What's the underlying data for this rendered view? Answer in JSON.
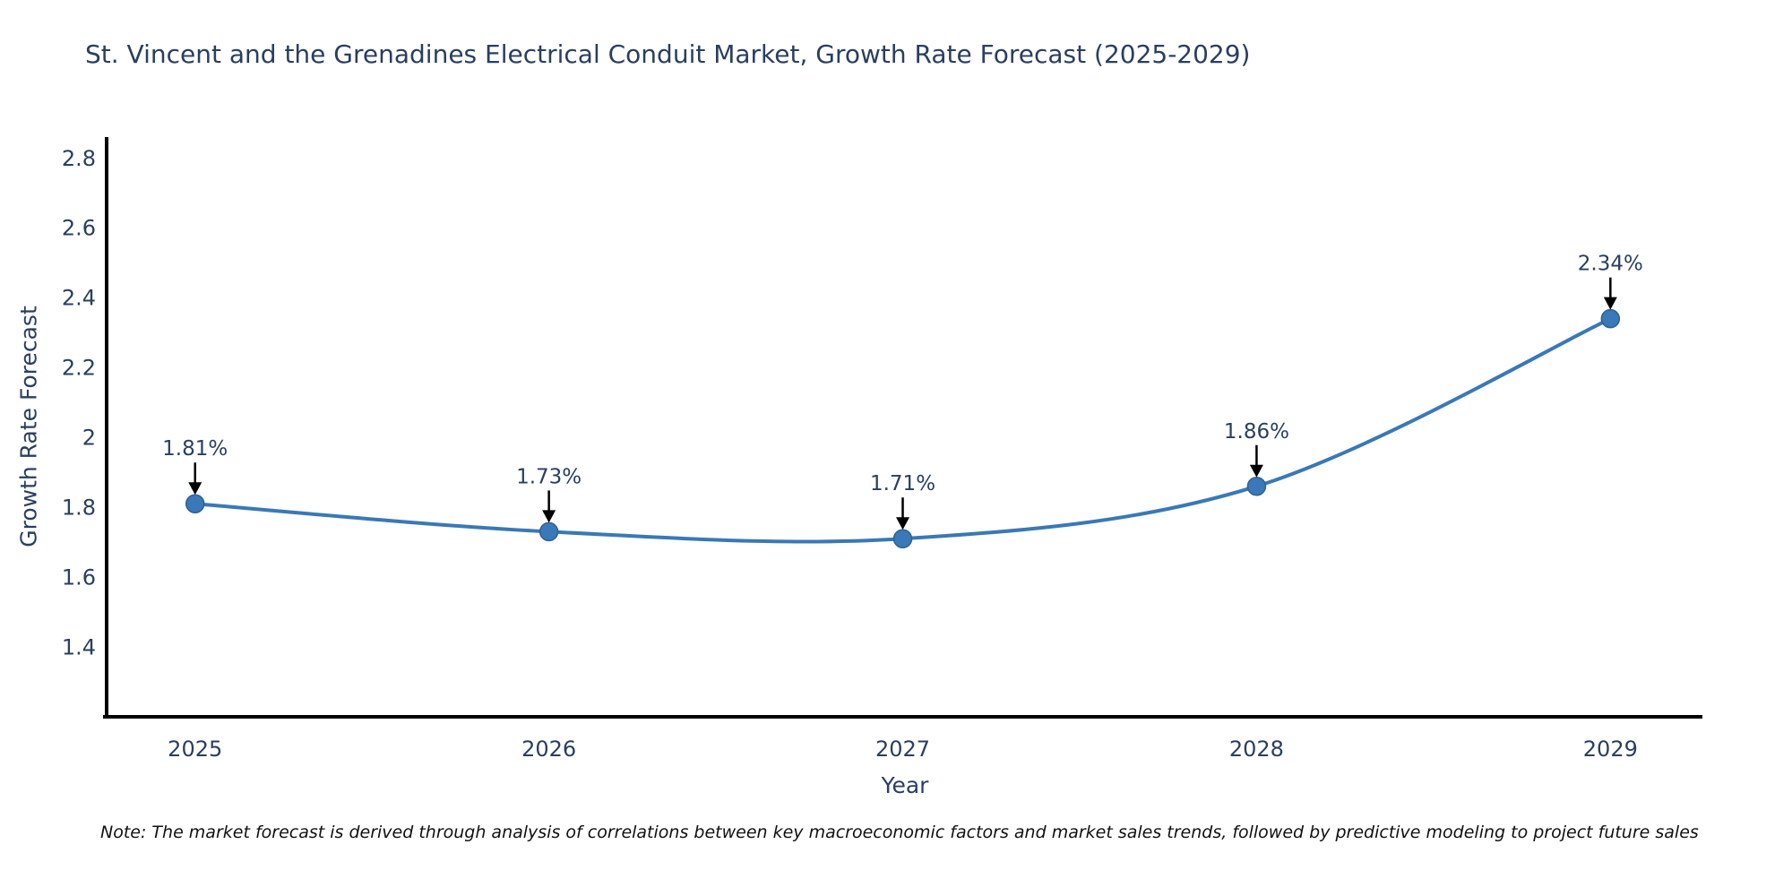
{
  "chart_data": {
    "type": "line",
    "title": "St. Vincent and the Grenadines Electrical Conduit Market, Growth Rate Forecast (2025-2029)",
    "xlabel": "Year",
    "ylabel": "Growth Rate Forecast",
    "x": [
      2025,
      2026,
      2027,
      2028,
      2029
    ],
    "series": [
      {
        "name": "Growth Rate Forecast",
        "values": [
          1.81,
          1.73,
          1.71,
          1.86,
          2.34
        ],
        "point_labels": [
          "1.81%",
          "1.73%",
          "1.71%",
          "1.86%",
          "2.34%"
        ]
      }
    ],
    "xtick_labels": [
      "2025",
      "2026",
      "2027",
      "2028",
      "2029"
    ],
    "ytick_values": [
      1.4,
      1.6,
      1.8,
      2,
      2.2,
      2.4,
      2.6,
      2.8
    ],
    "ytick_labels": [
      "1.4",
      "1.6",
      "1.8",
      "2",
      "2.2",
      "2.4",
      "2.6",
      "2.8"
    ],
    "xlim": [
      2024.75,
      2029.26
    ],
    "ylim": [
      1.2,
      2.86
    ],
    "line_shape": "spline",
    "grid": false,
    "legend_visible": false,
    "colors": {
      "line": "#3a78b7",
      "marker_fill": "#3a78b7",
      "marker_edge": "#2f6193",
      "annotation_text": "#2a3f5f",
      "annotation_arrow": "#000000",
      "tick_text": "#2a3f5f",
      "axis_line": "#000000",
      "background": "#ffffff"
    }
  },
  "note": {
    "text": "Note: The market forecast is derived through analysis of correlations between key macroeconomic factors and market sales trends, followed by predictive modeling to project future sales"
  }
}
